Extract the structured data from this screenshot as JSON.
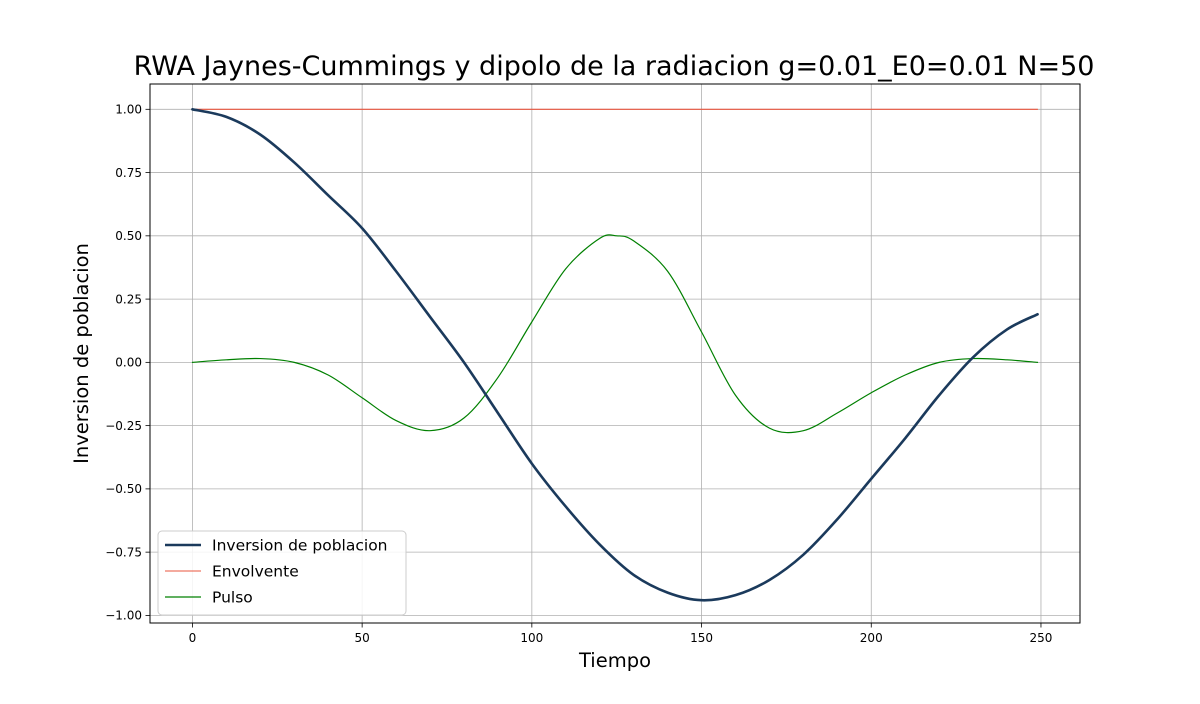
{
  "chart_data": {
    "type": "line",
    "title": "RWA Jaynes-Cummings y dipolo de la radiacion g=0.01_E0=0.01 N=50",
    "xlabel": "Tiempo",
    "ylabel": "Inversion de poblacion",
    "xlim": [
      -12.5,
      261.5
    ],
    "ylim": [
      -1.03,
      1.1
    ],
    "xticks": [
      0,
      50,
      100,
      150,
      200,
      250
    ],
    "xtick_labels": [
      "0",
      "50",
      "100",
      "150",
      "200",
      "250"
    ],
    "yticks": [
      -1.0,
      -0.75,
      -0.5,
      -0.25,
      0.0,
      0.25,
      0.5,
      0.75,
      1.0
    ],
    "ytick_labels": [
      "−1.00",
      "−0.75",
      "−0.50",
      "−0.25",
      "0.00",
      "0.25",
      "0.50",
      "0.75",
      "1.00"
    ],
    "grid": true,
    "legend_position": "lower-left",
    "series": [
      {
        "name": "Inversion de poblacion",
        "color": "#1b3a5c",
        "x": [
          0,
          10,
          20,
          30,
          40,
          50,
          60,
          70,
          80,
          90,
          100,
          110,
          120,
          130,
          140,
          150,
          160,
          170,
          180,
          190,
          200,
          210,
          220,
          230,
          240,
          249
        ],
        "y": [
          1.0,
          0.97,
          0.9,
          0.79,
          0.66,
          0.53,
          0.36,
          0.18,
          0.0,
          -0.2,
          -0.4,
          -0.57,
          -0.72,
          -0.84,
          -0.91,
          -0.94,
          -0.92,
          -0.86,
          -0.76,
          -0.62,
          -0.46,
          -0.3,
          -0.13,
          0.02,
          0.13,
          0.19
        ]
      },
      {
        "name": "Envolvente",
        "color": "#e8553e",
        "x": [
          0,
          249
        ],
        "y": [
          1.0,
          1.0
        ]
      },
      {
        "name": "Pulso",
        "color": "#008000",
        "x": [
          0,
          10,
          20,
          30,
          40,
          50,
          60,
          70,
          80,
          90,
          100,
          110,
          120,
          125,
          130,
          140,
          150,
          160,
          170,
          180,
          190,
          200,
          210,
          220,
          230,
          240,
          249
        ],
        "y": [
          0.0,
          0.01,
          0.015,
          0.0,
          -0.05,
          -0.14,
          -0.23,
          -0.27,
          -0.22,
          -0.06,
          0.16,
          0.37,
          0.49,
          0.5,
          0.48,
          0.36,
          0.12,
          -0.13,
          -0.26,
          -0.27,
          -0.2,
          -0.12,
          -0.05,
          0.0,
          0.015,
          0.01,
          0.0
        ]
      }
    ]
  }
}
